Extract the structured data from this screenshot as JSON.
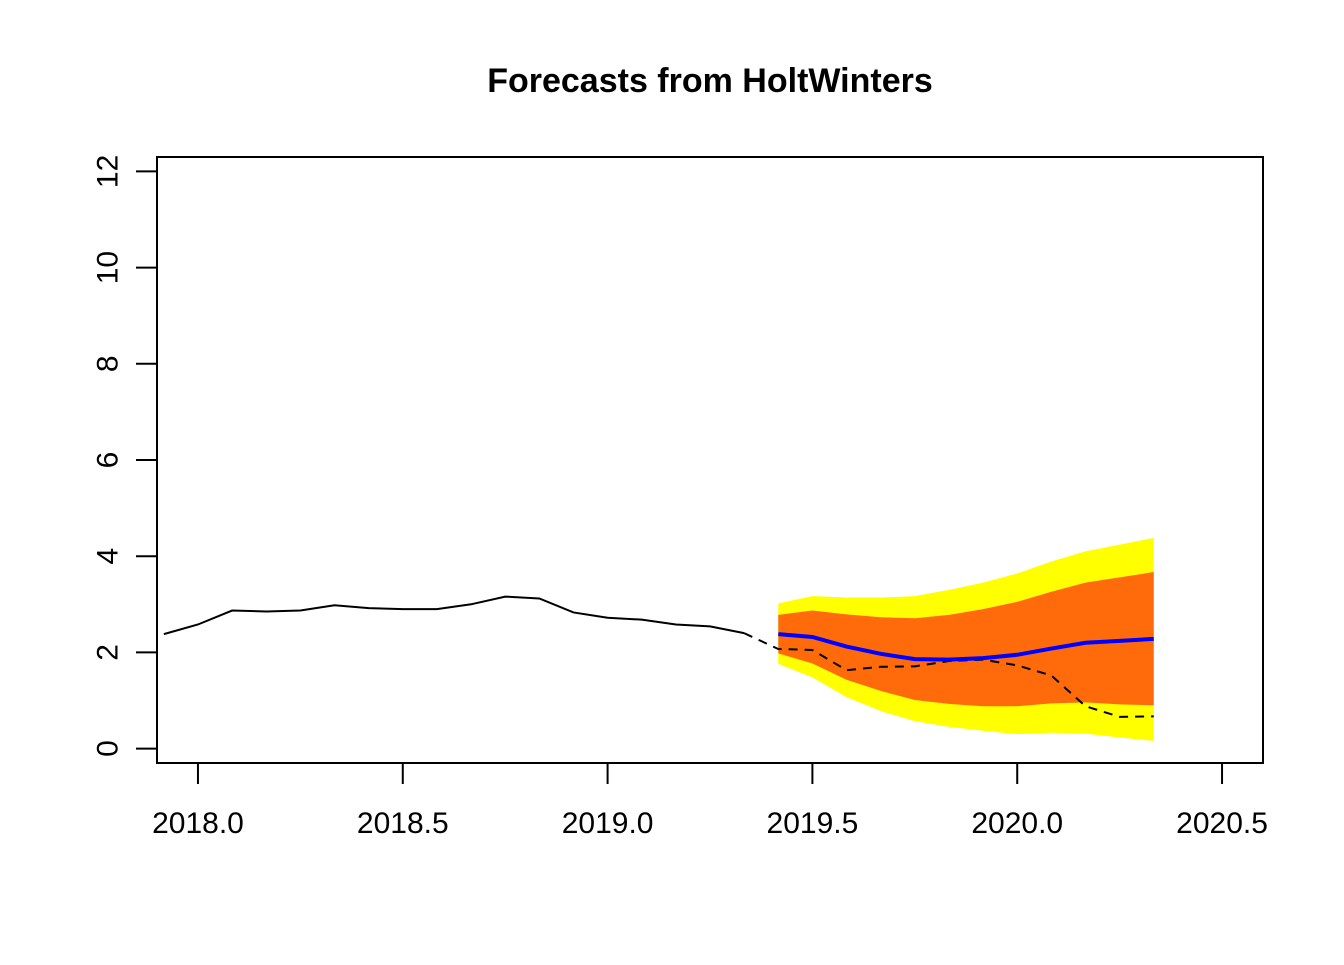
{
  "chart_data": {
    "type": "line",
    "title": "Forecasts from HoltWinters",
    "xlabel": "",
    "ylabel": "",
    "xlim": [
      2017.9,
      2020.6
    ],
    "ylim": [
      -0.3,
      12.3
    ],
    "x_ticks": [
      2018.0,
      2018.5,
      2019.0,
      2019.5,
      2020.0,
      2020.5
    ],
    "x_tick_labels": [
      "2018.0",
      "2018.5",
      "2019.0",
      "2019.5",
      "2020.0",
      "2020.5"
    ],
    "y_ticks": [
      0,
      2,
      4,
      6,
      8,
      10,
      12
    ],
    "y_tick_labels": [
      "0",
      "2",
      "4",
      "6",
      "8",
      "10",
      "12"
    ],
    "grid": false,
    "legend": "none",
    "colors": {
      "observed": "#000000",
      "actual_dashed": "#000000",
      "forecast": "#0000ff",
      "band_95": "#ffff00",
      "band_80": "#ff6a0a",
      "axes": "#000000"
    },
    "observed": {
      "x": [
        2017.9167,
        2018.0,
        2018.0833,
        2018.1667,
        2018.25,
        2018.3333,
        2018.4167,
        2018.5,
        2018.5833,
        2018.6667,
        2018.75,
        2018.8333,
        2018.9167,
        2019.0,
        2019.0833,
        2019.1667,
        2019.25,
        2019.3333
      ],
      "y": [
        2.38,
        2.58,
        2.87,
        2.85,
        2.87,
        2.98,
        2.92,
        2.9,
        2.9,
        3.0,
        3.16,
        3.12,
        2.83,
        2.72,
        2.68,
        2.58,
        2.54,
        2.4
      ]
    },
    "actual_dashed": {
      "x": [
        2019.3333,
        2019.4167,
        2019.5,
        2019.5833,
        2019.6667,
        2019.75,
        2019.8333,
        2019.9167,
        2020.0,
        2020.0833,
        2020.1667,
        2020.25,
        2020.3333
      ],
      "y": [
        2.4,
        2.07,
        2.05,
        1.63,
        1.7,
        1.71,
        1.82,
        1.85,
        1.73,
        1.52,
        0.88,
        0.66,
        0.67
      ]
    },
    "forecast": {
      "x": [
        2019.4167,
        2019.5,
        2019.5833,
        2019.6667,
        2019.75,
        2019.8333,
        2019.9167,
        2020.0,
        2020.0833,
        2020.1667,
        2020.25,
        2020.3333
      ],
      "mean": [
        2.38,
        2.32,
        2.12,
        1.97,
        1.86,
        1.85,
        1.88,
        1.95,
        2.08,
        2.2,
        2.24,
        2.28
      ],
      "lo80": [
        1.98,
        1.77,
        1.43,
        1.2,
        1.01,
        0.93,
        0.88,
        0.88,
        0.94,
        0.96,
        0.92,
        0.9
      ],
      "hi80": [
        2.78,
        2.87,
        2.79,
        2.73,
        2.71,
        2.78,
        2.9,
        3.05,
        3.26,
        3.45,
        3.56,
        3.67
      ],
      "lo95": [
        1.76,
        1.48,
        1.07,
        0.78,
        0.57,
        0.45,
        0.37,
        0.3,
        0.33,
        0.31,
        0.23,
        0.16
      ],
      "hi95": [
        3.02,
        3.17,
        3.14,
        3.14,
        3.17,
        3.3,
        3.45,
        3.64,
        3.89,
        4.1,
        4.24,
        4.38
      ]
    }
  }
}
